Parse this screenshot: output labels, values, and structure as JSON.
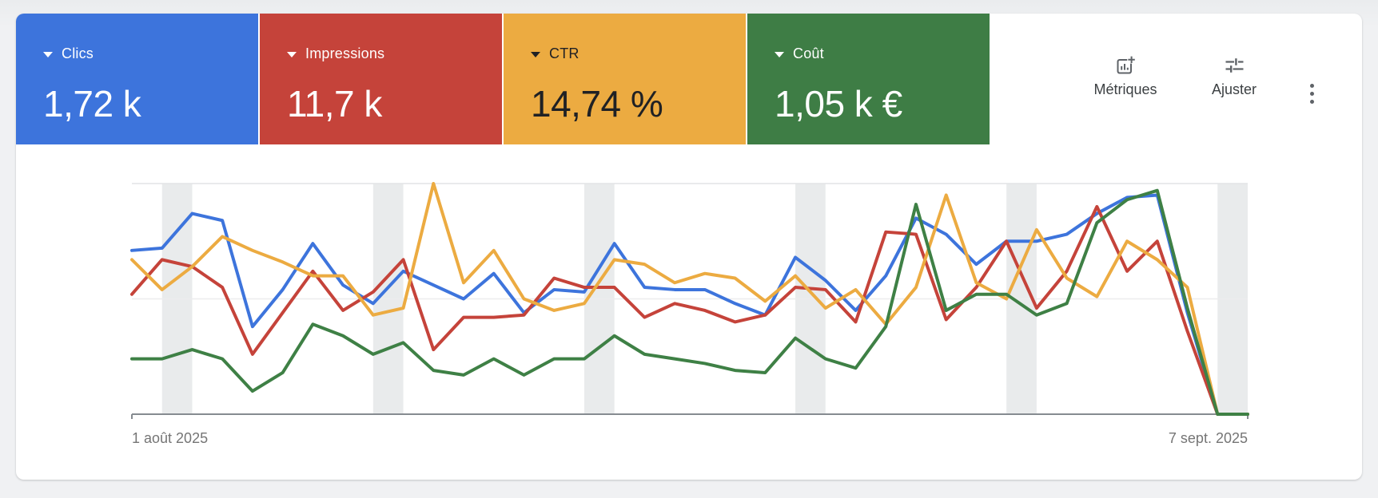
{
  "page": {
    "background": "#f0f1f3"
  },
  "metric_cards": [
    {
      "id": "clics",
      "label": "Clics",
      "value": "1,72 k",
      "color": "#3d74dc",
      "text_color": "#ffffff"
    },
    {
      "id": "impressions",
      "label": "Impressions",
      "value": "11,7 k",
      "color": "#c5433a",
      "text_color": "#ffffff"
    },
    {
      "id": "ctr",
      "label": "CTR",
      "value": "14,74 %",
      "color": "#ecab41",
      "text_color": "#202124"
    },
    {
      "id": "cout",
      "label": "Coût",
      "value": "1,05 k €",
      "color": "#3e7d45",
      "text_color": "#ffffff"
    }
  ],
  "toolbar": {
    "metrics_label": "Métriques",
    "adjust_label": "Ajuster",
    "metrics_icon": "chart-add-icon",
    "adjust_icon": "tune-sliders-icon",
    "more_icon": "kebab-menu-icon",
    "icon_color": "#5f6368"
  },
  "chart_data": {
    "type": "line",
    "title": "",
    "x_axis": {
      "start_label": "1 août 2025",
      "end_label": "7 sept. 2025",
      "points": 38,
      "label_color": "#757575"
    },
    "y_axis": {
      "tick_labels_visible": false,
      "unit": "relative_0_100_percent_of_plot_height",
      "range": [
        0,
        100
      ],
      "gridlines": "top_and_middle_only"
    },
    "legend": "none",
    "weekend_band_indices": [
      [
        1,
        2
      ],
      [
        8,
        9
      ],
      [
        15,
        16
      ],
      [
        22,
        23
      ],
      [
        29,
        30
      ],
      [
        36,
        37
      ]
    ],
    "weekend_band_color": "#e9ebec",
    "gridline_top_color": "#e2e4e6",
    "gridline_mid_color": "#ececee",
    "axis_line_color": "#868b90",
    "series": [
      {
        "name": "Clics",
        "color": "#3d74dc",
        "values": [
          71,
          72,
          87,
          84,
          38,
          54,
          74,
          56,
          48,
          62,
          56,
          50,
          61,
          44,
          54,
          53,
          74,
          55,
          54,
          54,
          48,
          43,
          68,
          58,
          45,
          60,
          85,
          78,
          65,
          75,
          75,
          78,
          87,
          94,
          95,
          44,
          0,
          0
        ]
      },
      {
        "name": "Impressions",
        "color": "#c5433a",
        "values": [
          52,
          67,
          64,
          55,
          26,
          44,
          62,
          45,
          53,
          67,
          28,
          42,
          42,
          43,
          59,
          55,
          55,
          42,
          48,
          45,
          40,
          43,
          55,
          54,
          40,
          79,
          78,
          41,
          55,
          75,
          46,
          62,
          90,
          62,
          75,
          36,
          0,
          0
        ]
      },
      {
        "name": "CTR",
        "color": "#ecab41",
        "values": [
          67,
          54,
          64,
          77,
          71,
          66,
          60,
          60,
          43,
          46,
          100,
          57,
          71,
          50,
          45,
          48,
          67,
          65,
          57,
          61,
          59,
          49,
          60,
          46,
          54,
          39,
          55,
          95,
          57,
          50,
          80,
          59,
          51,
          75,
          67,
          55,
          0,
          0
        ]
      },
      {
        "name": "Coût",
        "color": "#3e8045",
        "values": [
          24,
          24,
          28,
          24,
          10,
          18,
          39,
          34,
          26,
          31,
          19,
          17,
          24,
          17,
          24,
          24,
          34,
          26,
          24,
          22,
          19,
          18,
          33,
          24,
          20,
          38,
          91,
          45,
          52,
          52,
          43,
          48,
          83,
          93,
          97,
          46,
          0,
          0
        ]
      }
    ]
  }
}
